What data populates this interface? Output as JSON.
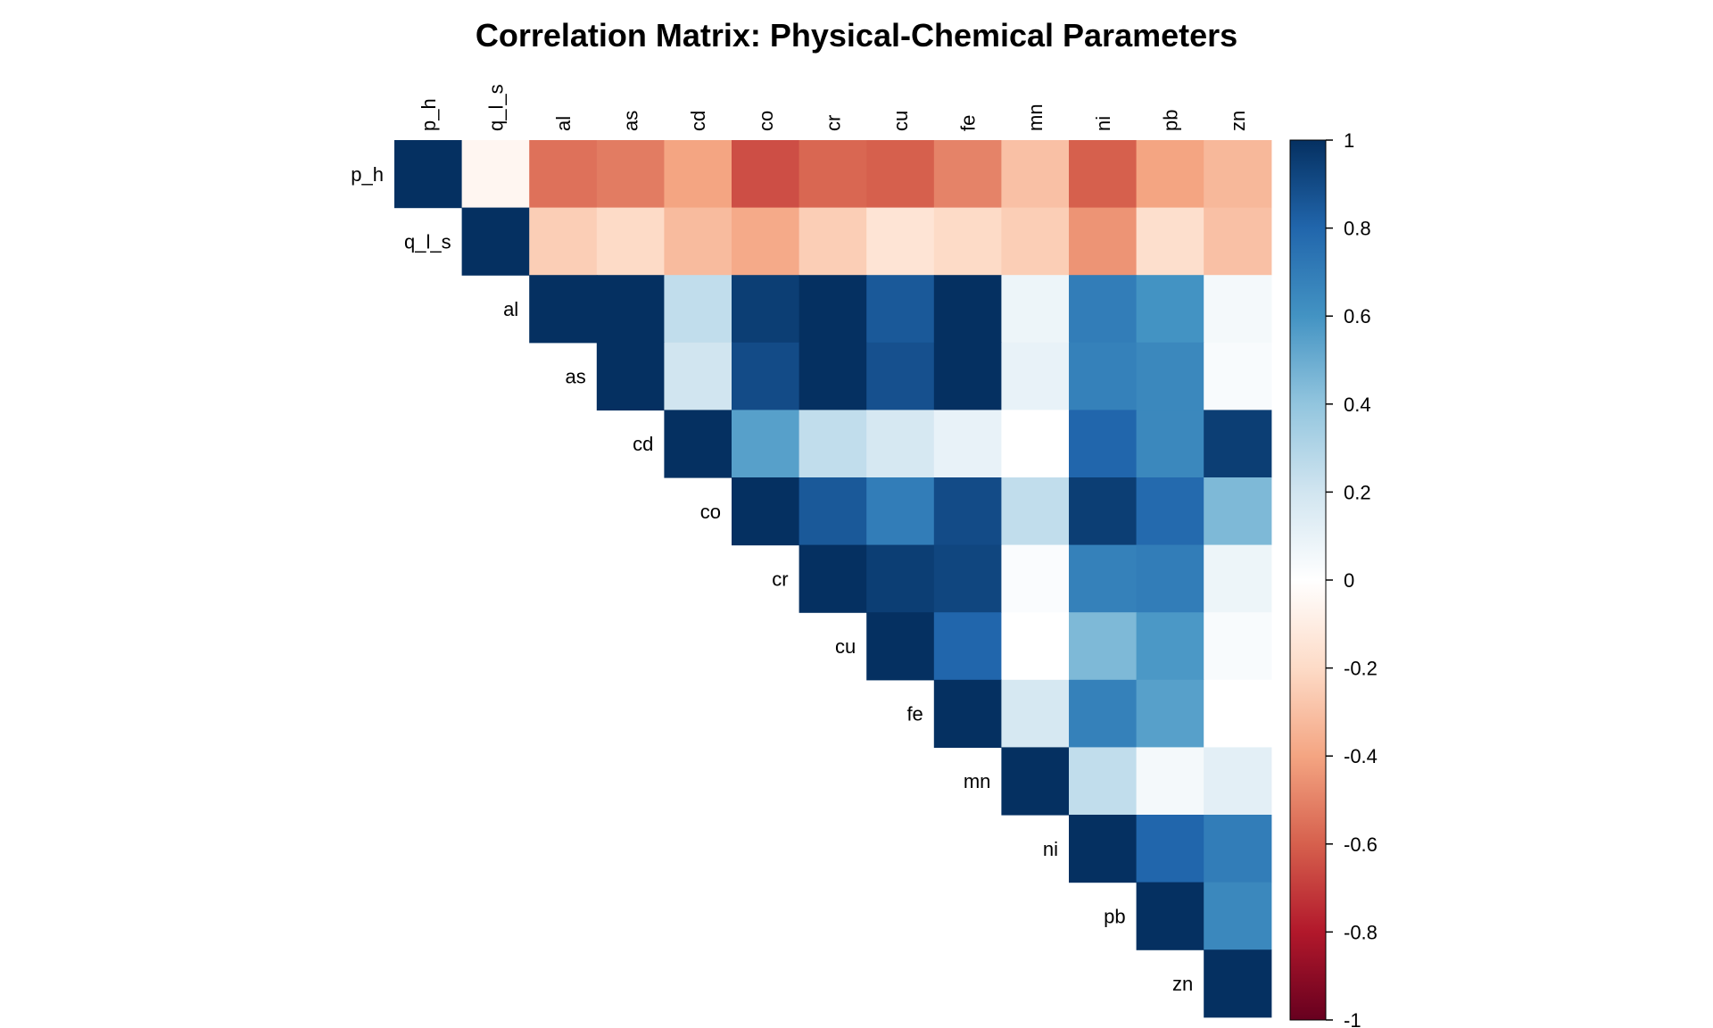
{
  "chart_data": {
    "type": "heatmap",
    "subtype": "upper-triangular correlation matrix",
    "title": "Correlation Matrix: Physical-Chemical Parameters",
    "variables": [
      "p_h",
      "q_l_s",
      "al",
      "as",
      "cd",
      "co",
      "cr",
      "cu",
      "fe",
      "mn",
      "ni",
      "pb",
      "zn"
    ],
    "matrix": [
      [
        1.0,
        -0.05,
        -0.55,
        -0.52,
        -0.4,
        -0.65,
        -0.58,
        -0.6,
        -0.5,
        -0.3,
        -0.6,
        -0.4,
        -0.33
      ],
      [
        null,
        1.0,
        -0.25,
        -0.2,
        -0.32,
        -0.38,
        -0.25,
        -0.15,
        -0.2,
        -0.25,
        -0.45,
        -0.18,
        -0.3
      ],
      [
        null,
        null,
        1.0,
        1.0,
        0.25,
        0.95,
        1.0,
        0.85,
        1.0,
        0.08,
        0.7,
        0.6,
        0.05
      ],
      [
        null,
        null,
        null,
        1.0,
        0.2,
        0.9,
        1.0,
        0.88,
        1.0,
        0.1,
        0.68,
        0.65,
        0.03
      ],
      [
        null,
        null,
        null,
        null,
        1.0,
        0.55,
        0.25,
        0.18,
        0.1,
        0.0,
        0.8,
        0.65,
        0.95
      ],
      [
        null,
        null,
        null,
        null,
        null,
        1.0,
        0.85,
        0.7,
        0.9,
        0.25,
        0.95,
        0.78,
        0.45
      ],
      [
        null,
        null,
        null,
        null,
        null,
        null,
        1.0,
        0.95,
        0.92,
        0.02,
        0.68,
        0.7,
        0.08
      ],
      [
        null,
        null,
        null,
        null,
        null,
        null,
        null,
        1.0,
        0.8,
        0.0,
        0.45,
        0.58,
        0.03
      ],
      [
        null,
        null,
        null,
        null,
        null,
        null,
        null,
        null,
        1.0,
        0.18,
        0.68,
        0.55,
        0.0
      ],
      [
        null,
        null,
        null,
        null,
        null,
        null,
        null,
        null,
        null,
        1.0,
        0.25,
        0.05,
        0.12
      ],
      [
        null,
        null,
        null,
        null,
        null,
        null,
        null,
        null,
        null,
        null,
        1.0,
        0.8,
        0.7
      ],
      [
        null,
        null,
        null,
        null,
        null,
        null,
        null,
        null,
        null,
        null,
        null,
        1.0,
        0.65
      ],
      [
        null,
        null,
        null,
        null,
        null,
        null,
        null,
        null,
        null,
        null,
        null,
        null,
        1.0
      ]
    ],
    "colorbar": {
      "min": -1,
      "max": 1,
      "ticks": [
        1,
        0.8,
        0.6,
        0.4,
        0.2,
        0,
        -0.2,
        -0.4,
        -0.6,
        -0.8,
        -1
      ],
      "tick_labels": [
        "1",
        "0.8",
        "0.6",
        "0.4",
        "0.2",
        "0",
        "-0.2",
        "-0.4",
        "-0.6",
        "-0.8",
        "-1"
      ],
      "palette_low_to_high": [
        "#67001F",
        "#B2182B",
        "#D6604D",
        "#F4A582",
        "#FDDBC7",
        "#FFFFFF",
        "#D1E5F0",
        "#92C5DE",
        "#4393C3",
        "#2166AC",
        "#053061"
      ]
    },
    "grid": false,
    "legend": "right"
  }
}
